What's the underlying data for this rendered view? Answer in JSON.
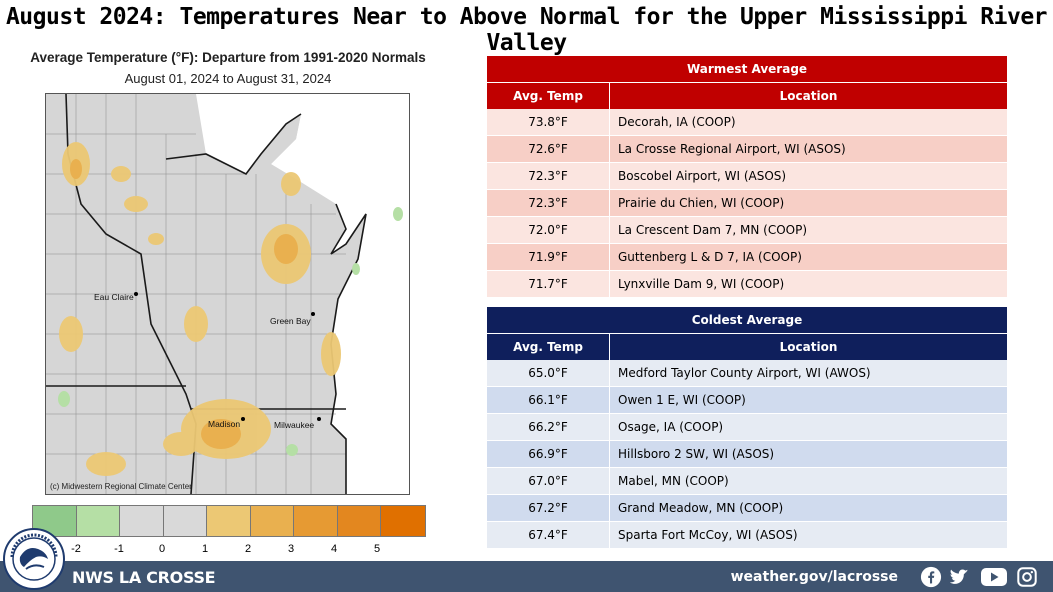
{
  "title": "August 2024:  Temperatures Near to Above Normal for the Upper Mississippi River Valley",
  "map": {
    "title": "Average Temperature (°F): Departure from 1991-2020 Normals",
    "subtitle": "August 01, 2024 to August 31, 2024",
    "credit": "(c) Midwestern Regional Climate Center",
    "cities": [
      "Eau Claire",
      "Green Bay",
      "Madison",
      "Milwaukee"
    ],
    "legend_labels": [
      "-2",
      "-1",
      "0",
      "1",
      "2",
      "3",
      "4",
      "5"
    ],
    "legend_colors": [
      "#8fc98a",
      "#b5dfa5",
      "#d9d9d9",
      "#d9d9d9",
      "#ecc874",
      "#e9b04f",
      "#e69a33",
      "#e3871f",
      "#e07000"
    ]
  },
  "warmest": {
    "header": "Warmest  Average",
    "col_temp": "Avg. Temp",
    "col_loc": "Location",
    "rows": [
      {
        "temp": "73.8°F",
        "loc": "Decorah, IA (COOP)"
      },
      {
        "temp": "72.6°F",
        "loc": "La Crosse Regional Airport, WI (ASOS)"
      },
      {
        "temp": "72.3°F",
        "loc": "Boscobel Airport, WI (ASOS)"
      },
      {
        "temp": "72.3°F",
        "loc": "Prairie du Chien, WI (COOP)"
      },
      {
        "temp": "72.0°F",
        "loc": "La Crescent Dam 7, MN (COOP)"
      },
      {
        "temp": "71.9°F",
        "loc": "Guttenberg L & D 7, IA (COOP)"
      },
      {
        "temp": "71.7°F",
        "loc": "Lynxville Dam 9, WI (COOP)"
      }
    ]
  },
  "coldest": {
    "header": "Coldest Average",
    "col_temp": "Avg. Temp",
    "col_loc": "Location",
    "rows": [
      {
        "temp": "65.0°F",
        "loc": "Medford Taylor County Airport, WI (AWOS)"
      },
      {
        "temp": "66.1°F",
        "loc": "Owen 1 E, WI (COOP)"
      },
      {
        "temp": "66.2°F",
        "loc": "Osage, IA (COOP)"
      },
      {
        "temp": "66.9°F",
        "loc": "Hillsboro 2 SW, WI (ASOS)"
      },
      {
        "temp": "67.0°F",
        "loc": "Mabel, MN (COOP)"
      },
      {
        "temp": "67.2°F",
        "loc": "Grand Meadow, MN (COOP)"
      },
      {
        "temp": "67.4°F",
        "loc": "Sparta Fort McCoy, WI (ASOS)"
      }
    ]
  },
  "footer": {
    "office": "NWS LA CROSSE",
    "url": "weather.gov/lacrosse",
    "icons": [
      "facebook-icon",
      "twitter-icon",
      "youtube-icon",
      "instagram-icon"
    ],
    "bar_color": "#3f5470"
  }
}
